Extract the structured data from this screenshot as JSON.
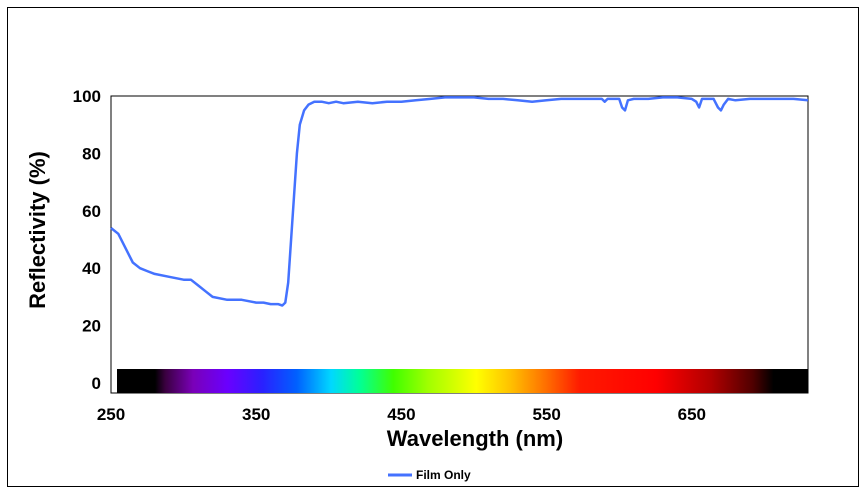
{
  "chart_data": {
    "type": "line",
    "title": "",
    "xlabel": "Wavelength (nm)",
    "ylabel": "Reflectivity (%)",
    "xlim": [
      250,
      730
    ],
    "ylim": [
      0,
      100
    ],
    "x_ticks": [
      "250",
      "350",
      "450",
      "550",
      "650"
    ],
    "y_ticks": [
      "0",
      "20",
      "40",
      "60",
      "80",
      "100"
    ],
    "grid": false,
    "legend_position": "bottom",
    "spectrum_bar": true,
    "series": [
      {
        "name": "Film Only",
        "color": "#4472ff",
        "x": [
          250,
          255,
          260,
          265,
          270,
          275,
          280,
          290,
          300,
          305,
          310,
          315,
          320,
          330,
          340,
          350,
          355,
          360,
          365,
          368,
          370,
          372,
          374,
          376,
          378,
          380,
          383,
          386,
          390,
          395,
          400,
          405,
          410,
          420,
          430,
          440,
          450,
          460,
          470,
          480,
          490,
          500,
          510,
          520,
          530,
          540,
          550,
          560,
          570,
          580,
          588,
          590,
          592,
          600,
          602,
          604,
          606,
          610,
          620,
          630,
          640,
          650,
          653,
          655,
          657,
          660,
          665,
          668,
          670,
          672,
          675,
          680,
          690,
          700,
          710,
          720,
          730
        ],
        "values": [
          54,
          52,
          47,
          42,
          40,
          39,
          38,
          37,
          36,
          36,
          34,
          32,
          30,
          29,
          29,
          28,
          28,
          27.5,
          27.5,
          27,
          28,
          35,
          50,
          65,
          80,
          90,
          95,
          97,
          98,
          98,
          97.5,
          98,
          97.5,
          98,
          97.5,
          98,
          98,
          98.5,
          99,
          99.5,
          99.5,
          99.5,
          99,
          99,
          98.5,
          98,
          98.5,
          99,
          99,
          99,
          99,
          98,
          99,
          99,
          96,
          95,
          98.5,
          99,
          99,
          99.5,
          99.5,
          99,
          98,
          96,
          99,
          99,
          99,
          96,
          95,
          97,
          99,
          98.5,
          99,
          99,
          99,
          99,
          98.5
        ]
      }
    ]
  }
}
